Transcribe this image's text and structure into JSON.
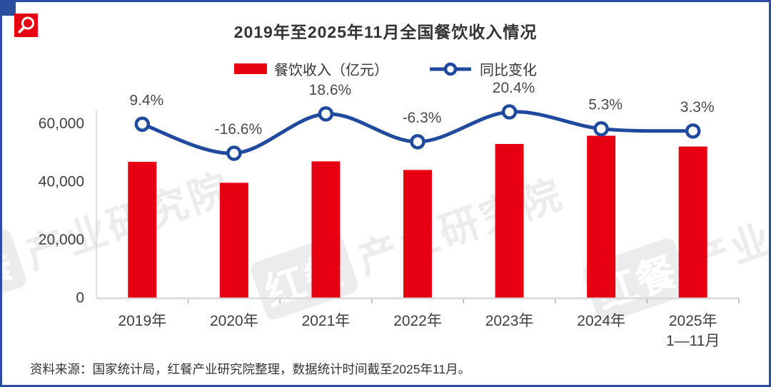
{
  "header": {
    "title": "2019年至2025年11月全国餐饮收入情况"
  },
  "legend": [
    {
      "label": "餐饮收入（亿元）",
      "swatch": "bar",
      "color": "#E60012"
    },
    {
      "label": "同比变化",
      "swatch": "line-marker",
      "color": "#1F4A9D"
    }
  ],
  "footer": {
    "source_note": "资料来源：国家统计局，红餐产业研究院整理，数据统计时间截至2025年11月。"
  },
  "watermark": {
    "brand_box": "红餐",
    "brand_text": "产业研究院"
  },
  "colors": {
    "bar_red": "#E60012",
    "line_blue": "#1F4A9D",
    "frame_blue": "#2C4EA1",
    "axis_gray": "#d9d9d9",
    "text_dark": "#333333",
    "label_gray": "#4a4a4a"
  },
  "chart_data": {
    "type": "combo (bar + line)",
    "title": "2019年至2025年11月全国餐饮收入情况",
    "categories": [
      "2019年",
      "2020年",
      "2021年",
      "2022年",
      "2023年",
      "2024年",
      "2025年\n1—11月"
    ],
    "series": [
      {
        "name": "餐饮收入（亿元）",
        "type": "bar",
        "color": "#E60012",
        "values": [
          46721,
          39527,
          46895,
          43941,
          52890,
          55718,
          52000
        ]
      },
      {
        "name": "同比变化",
        "type": "line",
        "color": "#1F4A9D",
        "unit": "%",
        "values": [
          9.4,
          -16.6,
          18.6,
          -6.3,
          20.4,
          5.3,
          3.3
        ],
        "point_labels": [
          "9.4%",
          "-16.6%",
          "18.6%",
          "-6.3%",
          "20.4%",
          "5.3%",
          "3.3%"
        ]
      }
    ],
    "yaxis_left": {
      "ticks": [
        0,
        20000,
        40000,
        60000
      ],
      "tick_labels": [
        "0",
        "20,000",
        "40,000",
        "60,000"
      ],
      "range": [
        0,
        60000
      ]
    },
    "grid": false,
    "legend_position": "top-center"
  }
}
